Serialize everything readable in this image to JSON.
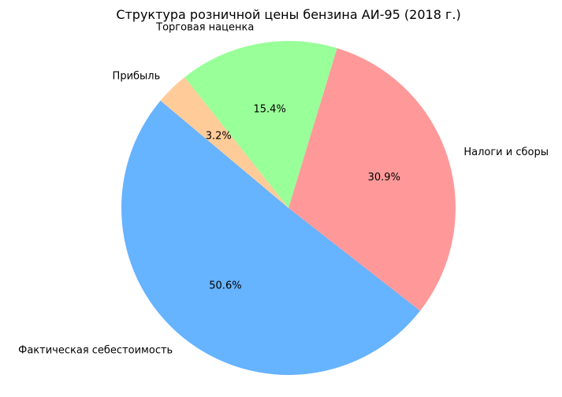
{
  "chart_data": {
    "type": "pie",
    "title": "Структура розничной цены бензина АИ-95 (2018 г.)",
    "slices": [
      {
        "label": "Фактическая себестоимость",
        "value": 50.6,
        "pct_label": "50.6%",
        "color": "#66b3ff"
      },
      {
        "label": "Налоги и сборы",
        "value": 30.9,
        "pct_label": "30.9%",
        "color": "#ff9999"
      },
      {
        "label": "Торговая наценка",
        "value": 15.4,
        "pct_label": "15.4%",
        "color": "#99ff99"
      },
      {
        "label": "Прибыль",
        "value": 3.2,
        "pct_label": "3.2%",
        "color": "#ffcc99"
      }
    ],
    "start_angle": 140,
    "direction": "counterclockwise"
  }
}
